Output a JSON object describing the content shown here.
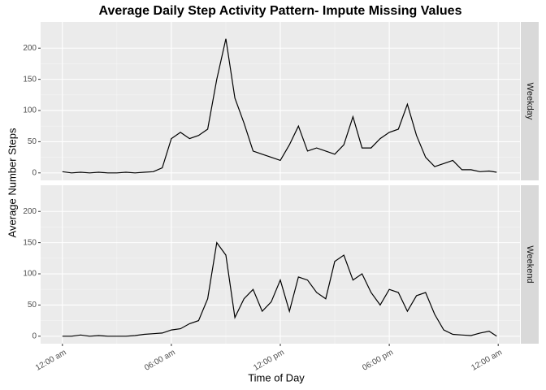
{
  "chart_data": {
    "type": "line",
    "facet": "rows",
    "title": "Average Daily Step Activity Pattern- Impute Missing Values",
    "x_label": "Time of Day",
    "y_label": "Average Number Steps",
    "x": [
      0,
      0.5,
      1,
      1.5,
      2,
      2.5,
      3,
      3.5,
      4,
      4.5,
      5,
      5.5,
      6,
      6.5,
      7,
      7.5,
      8,
      8.5,
      9,
      9.5,
      10,
      10.5,
      11,
      11.5,
      12,
      12.5,
      13,
      13.5,
      14,
      14.5,
      15,
      15.5,
      16,
      16.5,
      17,
      17.5,
      18,
      18.5,
      19,
      19.5,
      20,
      20.5,
      21,
      21.5,
      22,
      22.5,
      23,
      23.5,
      23.917
    ],
    "series": [
      {
        "name": "Weekday",
        "color": "#000000",
        "values": [
          2,
          0,
          1,
          0,
          1,
          0,
          0,
          1,
          0,
          1,
          2,
          8,
          55,
          65,
          55,
          60,
          70,
          150,
          215,
          120,
          80,
          35,
          30,
          25,
          20,
          45,
          75,
          35,
          40,
          35,
          30,
          45,
          90,
          40,
          40,
          55,
          65,
          70,
          110,
          60,
          25,
          10,
          15,
          20,
          5,
          5,
          2,
          3,
          1
        ]
      },
      {
        "name": "Weekend",
        "color": "#000000",
        "values": [
          0,
          0,
          2,
          0,
          1,
          0,
          0,
          0,
          1,
          3,
          4,
          5,
          10,
          12,
          20,
          25,
          60,
          150,
          130,
          30,
          60,
          75,
          40,
          55,
          90,
          40,
          95,
          90,
          70,
          60,
          120,
          130,
          90,
          100,
          70,
          50,
          75,
          70,
          40,
          65,
          70,
          35,
          10,
          3,
          2,
          1,
          5,
          8,
          0
        ]
      }
    ],
    "xlim": [
      -1.2,
      25.2
    ],
    "xticks": [
      {
        "value": 0,
        "label": "12:00 am"
      },
      {
        "value": 6,
        "label": "06:00 am"
      },
      {
        "value": 12,
        "label": "12:00 pm"
      },
      {
        "value": 18,
        "label": "06:00 pm"
      },
      {
        "value": 24,
        "label": "12:00 am"
      }
    ],
    "ylim": [
      -12,
      242
    ],
    "yticks": [
      0,
      50,
      100,
      150,
      200
    ],
    "grid": true
  }
}
